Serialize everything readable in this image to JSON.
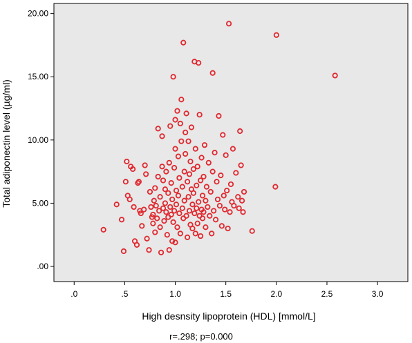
{
  "chart_data": {
    "type": "scatter",
    "title": "",
    "xlabel": "High desnsity lipoprotein (HDL) [mmol/L]",
    "ylabel": "Total adiponectin level (µg/ml)",
    "note": "r=.298; p=0.000",
    "xlim": [
      -0.2,
      3.3
    ],
    "ylim": [
      -1.2,
      20.8
    ],
    "xticks": [
      0,
      0.5,
      1.0,
      1.5,
      2.0,
      2.5,
      3.0
    ],
    "xtick_labels": [
      ".0",
      ".5",
      "1.0",
      "1.5",
      "2.0",
      "2.5",
      "3.0"
    ],
    "yticks": [
      0,
      5,
      10,
      15,
      20
    ],
    "ytick_labels": [
      ".00",
      "5.00",
      "10.00",
      "15.00",
      "20.00"
    ],
    "grid": false,
    "colors": {
      "plot_background": "#e8e8e8",
      "marker": "#e0282f"
    },
    "marker": "open-circle",
    "points": [
      [
        0.29,
        2.9
      ],
      [
        0.42,
        4.9
      ],
      [
        0.47,
        3.7
      ],
      [
        0.49,
        1.2
      ],
      [
        0.51,
        6.7
      ],
      [
        0.52,
        8.3
      ],
      [
        0.53,
        5.6
      ],
      [
        0.55,
        5.3
      ],
      [
        0.56,
        7.9
      ],
      [
        0.58,
        7.7
      ],
      [
        0.59,
        4.7
      ],
      [
        0.6,
        2.0
      ],
      [
        0.62,
        1.7
      ],
      [
        0.63,
        6.6
      ],
      [
        0.64,
        6.7
      ],
      [
        0.65,
        4.4
      ],
      [
        0.66,
        4.2
      ],
      [
        0.67,
        3.2
      ],
      [
        0.69,
        4.5
      ],
      [
        0.7,
        8.0
      ],
      [
        0.71,
        7.3
      ],
      [
        0.72,
        2.2
      ],
      [
        0.74,
        1.3
      ],
      [
        0.75,
        5.9
      ],
      [
        0.76,
        4.7
      ],
      [
        0.77,
        3.9
      ],
      [
        0.78,
        4.1
      ],
      [
        0.78,
        3.4
      ],
      [
        0.79,
        5.2
      ],
      [
        0.8,
        6.2
      ],
      [
        0.8,
        2.7
      ],
      [
        0.81,
        4.8
      ],
      [
        0.82,
        3.8
      ],
      [
        0.83,
        10.9
      ],
      [
        0.83,
        7.1
      ],
      [
        0.84,
        4.4
      ],
      [
        0.85,
        5.5
      ],
      [
        0.85,
        3.1
      ],
      [
        0.86,
        1.1
      ],
      [
        0.87,
        7.9
      ],
      [
        0.87,
        10.3
      ],
      [
        0.88,
        6.8
      ],
      [
        0.88,
        4.6
      ],
      [
        0.89,
        3.6
      ],
      [
        0.9,
        6.1
      ],
      [
        0.9,
        5.0
      ],
      [
        0.91,
        7.5
      ],
      [
        0.91,
        4.3
      ],
      [
        0.92,
        2.5
      ],
      [
        0.93,
        5.8
      ],
      [
        0.93,
        3.9
      ],
      [
        0.94,
        1.3
      ],
      [
        0.94,
        8.2
      ],
      [
        0.95,
        4.7
      ],
      [
        0.95,
        11.1
      ],
      [
        0.96,
        6.6
      ],
      [
        0.96,
        4.1
      ],
      [
        0.97,
        2.0
      ],
      [
        0.97,
        5.3
      ],
      [
        0.98,
        3.5
      ],
      [
        0.98,
        15.0
      ],
      [
        0.99,
        7.8
      ],
      [
        0.99,
        4.4
      ],
      [
        1.0,
        9.3
      ],
      [
        1.0,
        11.6
      ],
      [
        1.0,
        1.9
      ],
      [
        1.01,
        6.0
      ],
      [
        1.01,
        4.9
      ],
      [
        1.02,
        12.3
      ],
      [
        1.02,
        3.1
      ],
      [
        1.03,
        5.6
      ],
      [
        1.03,
        8.7
      ],
      [
        1.04,
        7.0
      ],
      [
        1.04,
        4.2
      ],
      [
        1.05,
        11.3
      ],
      [
        1.05,
        2.6
      ],
      [
        1.06,
        9.9
      ],
      [
        1.06,
        13.2
      ],
      [
        1.07,
        6.3
      ],
      [
        1.07,
        4.6
      ],
      [
        1.08,
        17.7
      ],
      [
        1.08,
        3.8
      ],
      [
        1.09,
        7.5
      ],
      [
        1.09,
        5.2
      ],
      [
        1.1,
        8.9
      ],
      [
        1.1,
        10.6
      ],
      [
        1.11,
        4.0
      ],
      [
        1.11,
        12.1
      ],
      [
        1.12,
        6.7
      ],
      [
        1.12,
        2.3
      ],
      [
        1.13,
        9.9
      ],
      [
        1.13,
        5.5
      ],
      [
        1.14,
        7.3
      ],
      [
        1.14,
        4.4
      ],
      [
        1.15,
        3.3
      ],
      [
        1.15,
        8.3
      ],
      [
        1.16,
        6.1
      ],
      [
        1.16,
        11.0
      ],
      [
        1.17,
        4.9
      ],
      [
        1.17,
        3.0
      ],
      [
        1.18,
        5.8
      ],
      [
        1.18,
        7.7
      ],
      [
        1.19,
        16.2
      ],
      [
        1.19,
        4.2
      ],
      [
        1.2,
        9.3
      ],
      [
        1.2,
        2.6
      ],
      [
        1.21,
        6.4
      ],
      [
        1.21,
        4.6
      ],
      [
        1.22,
        7.9
      ],
      [
        1.22,
        3.4
      ],
      [
        1.23,
        16.1
      ],
      [
        1.23,
        5.1
      ],
      [
        1.24,
        12.0
      ],
      [
        1.24,
        4.0
      ],
      [
        1.25,
        6.8
      ],
      [
        1.25,
        2.4
      ],
      [
        1.26,
        8.6
      ],
      [
        1.26,
        4.5
      ],
      [
        1.27,
        5.6
      ],
      [
        1.27,
        3.8
      ],
      [
        1.28,
        7.1
      ],
      [
        1.28,
        4.3
      ],
      [
        1.29,
        9.6
      ],
      [
        1.3,
        5.2
      ],
      [
        1.3,
        3.1
      ],
      [
        1.31,
        6.3
      ],
      [
        1.32,
        4.7
      ],
      [
        1.33,
        8.2
      ],
      [
        1.34,
        4.0
      ],
      [
        1.35,
        5.9
      ],
      [
        1.36,
        2.6
      ],
      [
        1.37,
        15.3
      ],
      [
        1.37,
        7.5
      ],
      [
        1.38,
        4.4
      ],
      [
        1.39,
        9.0
      ],
      [
        1.4,
        3.7
      ],
      [
        1.41,
        6.7
      ],
      [
        1.42,
        5.3
      ],
      [
        1.43,
        11.9
      ],
      [
        1.44,
        4.8
      ],
      [
        1.45,
        7.2
      ],
      [
        1.46,
        3.2
      ],
      [
        1.47,
        10.4
      ],
      [
        1.48,
        5.6
      ],
      [
        1.49,
        4.5
      ],
      [
        1.5,
        8.8
      ],
      [
        1.51,
        6.0
      ],
      [
        1.52,
        3.0
      ],
      [
        1.53,
        19.2
      ],
      [
        1.54,
        4.3
      ],
      [
        1.55,
        6.5
      ],
      [
        1.56,
        5.1
      ],
      [
        1.57,
        9.3
      ],
      [
        1.58,
        4.8
      ],
      [
        1.6,
        7.4
      ],
      [
        1.62,
        5.5
      ],
      [
        1.63,
        4.6
      ],
      [
        1.64,
        10.7
      ],
      [
        1.65,
        8.0
      ],
      [
        1.66,
        5.2
      ],
      [
        1.67,
        4.3
      ],
      [
        1.68,
        5.9
      ],
      [
        1.76,
        2.8
      ],
      [
        1.99,
        6.3
      ],
      [
        2.0,
        18.3
      ],
      [
        2.58,
        15.1
      ]
    ]
  }
}
